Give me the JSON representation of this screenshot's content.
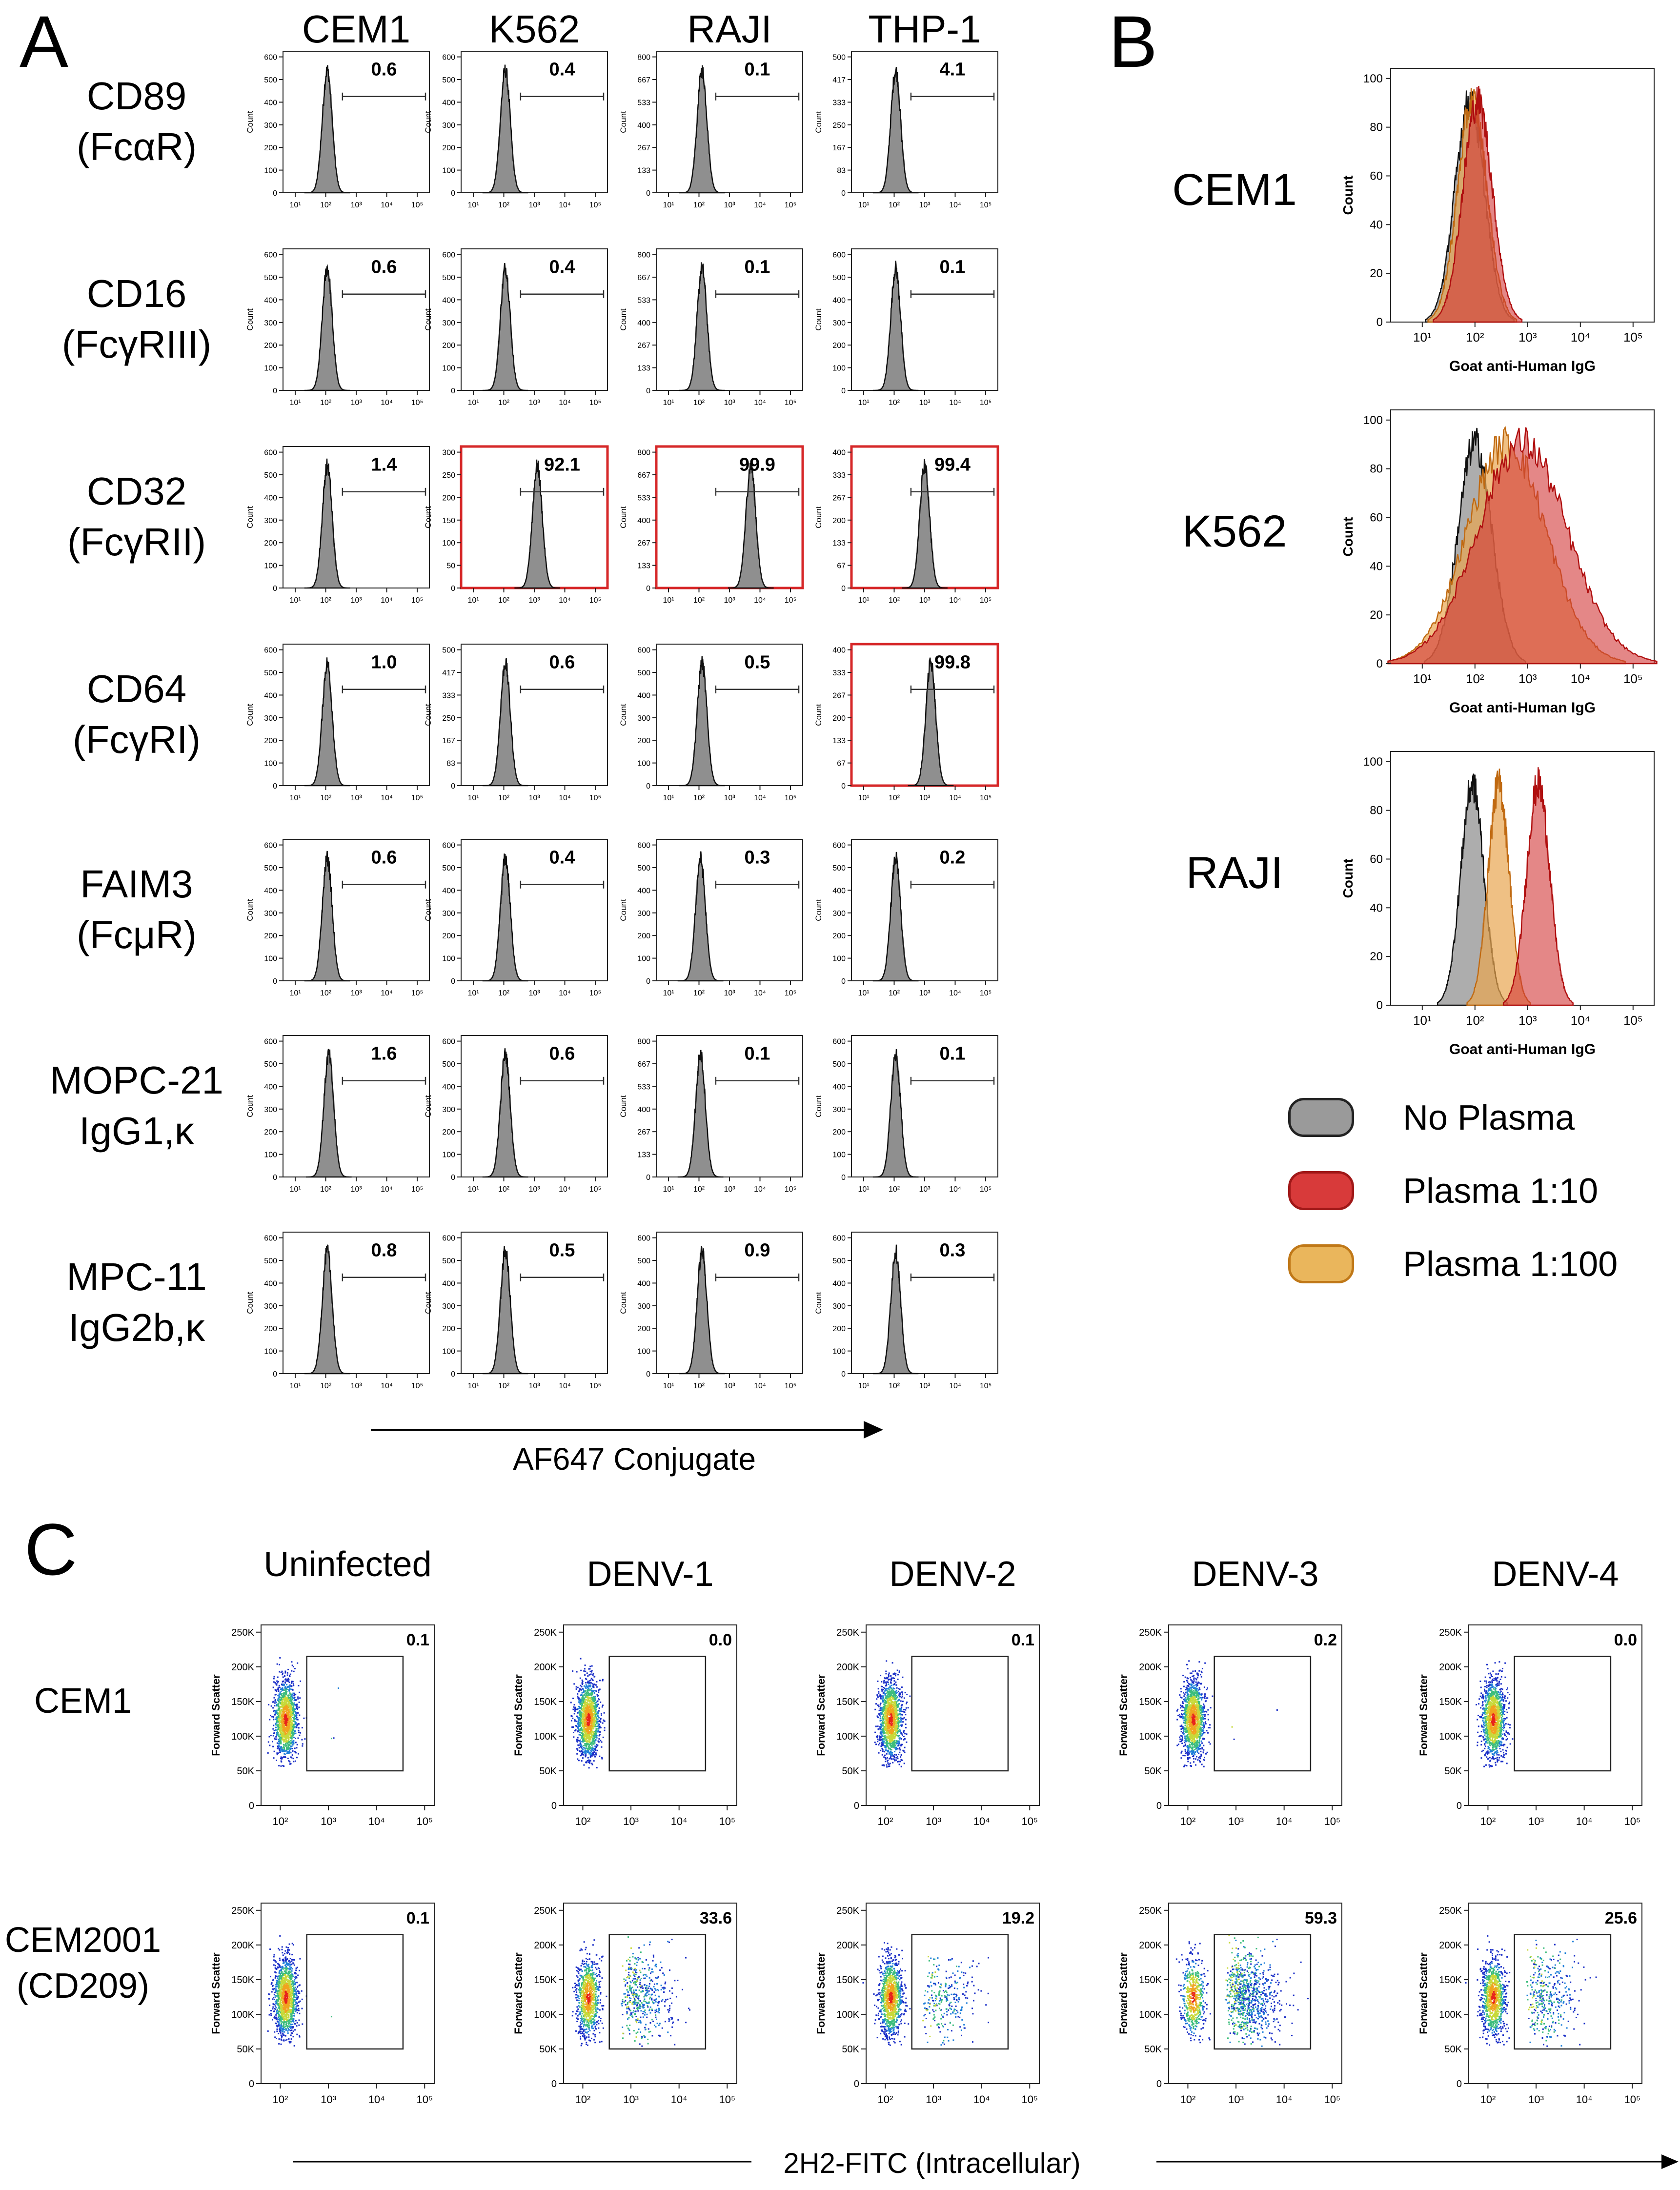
{
  "panels": {
    "a": "A",
    "b": "B",
    "c": "C"
  },
  "colors": {
    "hist_fill": "#8f8f8f",
    "highlight_frame": "#d62728",
    "no_plasma": "#9a9a9a",
    "plasma_1_10": "#cc2c2c",
    "plasma_1_100": "#e6a24a"
  },
  "chart_data": [
    {
      "id": "panelA",
      "type": "histogram-grid",
      "title": "",
      "xlabel": "AF647 Conjugate",
      "x_scale": "log",
      "x_tick_labels": [
        "10¹",
        "10²",
        "10³",
        "10⁴",
        "10⁵"
      ],
      "ylabel": "Count",
      "columns": [
        "CEM1",
        "K562",
        "RAJI",
        "THP-1"
      ],
      "rows": [
        {
          "label": "CD89\n(FcαR)",
          "values": [
            "0.6",
            "0.4",
            "0.1",
            "4.1"
          ],
          "peaks": [
            2.05,
            2.05,
            2.1,
            2.05
          ],
          "ymax": [
            600,
            600,
            800,
            500
          ],
          "highlight": [
            false,
            false,
            false,
            false
          ]
        },
        {
          "label": "CD16\n(FcγRIII)",
          "values": [
            "0.6",
            "0.4",
            "0.1",
            "0.1"
          ],
          "peaks": [
            2.05,
            2.05,
            2.1,
            2.05
          ],
          "ymax": [
            600,
            600,
            800,
            600
          ],
          "highlight": [
            false,
            false,
            false,
            false
          ]
        },
        {
          "label": "CD32\n(FcγRII)",
          "values": [
            "1.4",
            "92.1",
            "99.9",
            "99.4"
          ],
          "peaks": [
            2.05,
            3.1,
            3.7,
            3.0
          ],
          "ymax": [
            600,
            300,
            800,
            400
          ],
          "highlight": [
            false,
            true,
            true,
            true
          ]
        },
        {
          "label": "CD64\n(FcγRI)",
          "values": [
            "1.0",
            "0.6",
            "0.5",
            "99.8"
          ],
          "peaks": [
            2.05,
            2.05,
            2.1,
            3.2
          ],
          "ymax": [
            600,
            500,
            600,
            400
          ],
          "highlight": [
            false,
            false,
            false,
            true
          ]
        },
        {
          "label": "FAIM3\n(FcμR)",
          "values": [
            "0.6",
            "0.4",
            "0.3",
            "0.2"
          ],
          "peaks": [
            2.05,
            2.05,
            2.05,
            2.05
          ],
          "ymax": [
            600,
            600,
            600,
            600
          ],
          "highlight": [
            false,
            false,
            false,
            false
          ]
        },
        {
          "label": "MOPC-21\nIgG1,κ",
          "values": [
            "1.6",
            "0.6",
            "0.1",
            "0.1"
          ],
          "peaks": [
            2.1,
            2.05,
            2.05,
            2.05
          ],
          "ymax": [
            600,
            600,
            800,
            600
          ],
          "highlight": [
            false,
            false,
            false,
            false
          ]
        },
        {
          "label": "MPC-11\nIgG2b,κ",
          "values": [
            "0.8",
            "0.5",
            "0.9",
            "0.3"
          ],
          "peaks": [
            2.05,
            2.05,
            2.1,
            2.05
          ],
          "ymax": [
            600,
            600,
            600,
            600
          ],
          "highlight": [
            false,
            false,
            false,
            false
          ]
        }
      ]
    },
    {
      "id": "panelB",
      "type": "area",
      "xlabel": "Goat anti-Human IgG",
      "ylabel": "Count",
      "ylim": [
        0,
        100
      ],
      "y_ticks": [
        "0",
        "20",
        "40",
        "60",
        "80",
        "100"
      ],
      "x_tick_labels": [
        "10¹",
        "10²",
        "10³",
        "10⁴",
        "10⁵"
      ],
      "rows": [
        {
          "label": "CEM1",
          "series": [
            {
              "name": "No Plasma",
              "peak": 1.9,
              "width": 0.28
            },
            {
              "name": "Plasma 1:100",
              "peak": 1.95,
              "width": 0.28
            },
            {
              "name": "Plasma 1:10",
              "peak": 2.05,
              "width": 0.28
            }
          ]
        },
        {
          "label": "K562",
          "series": [
            {
              "name": "No Plasma",
              "peak": 2.0,
              "width": 0.32
            },
            {
              "name": "Plasma 1:100",
              "peak": 2.6,
              "width": 0.75
            },
            {
              "name": "Plasma 1:10",
              "peak": 2.9,
              "width": 0.85
            }
          ]
        },
        {
          "label": "RAJI",
          "series": [
            {
              "name": "No Plasma",
              "peak": 1.95,
              "width": 0.22
            },
            {
              "name": "Plasma 1:100",
              "peak": 2.45,
              "width": 0.2
            },
            {
              "name": "Plasma 1:10",
              "peak": 3.2,
              "width": 0.22
            }
          ]
        }
      ]
    },
    {
      "id": "panelC",
      "type": "scatter-grid",
      "xlabel": "2H2-FITC (Intracellular)",
      "ylabel": "Forward Scatter",
      "y_tick_labels": [
        "0",
        "50K",
        "100K",
        "150K",
        "200K",
        "250K"
      ],
      "x_tick_labels": [
        "10²",
        "10³",
        "10⁴",
        "10⁵"
      ],
      "columns": [
        "Uninfected",
        "DENV-1",
        "DENV-2",
        "DENV-3",
        "DENV-4"
      ],
      "rows": [
        {
          "label": "CEM1",
          "values": [
            "0.1",
            "0.0",
            "0.1",
            "0.2",
            "0.0"
          ]
        },
        {
          "label": "CEM2001\n(CD209)",
          "values": [
            "0.1",
            "33.6",
            "19.2",
            "59.3",
            "25.6"
          ]
        }
      ]
    }
  ],
  "legend": [
    {
      "label": "No Plasma",
      "color": "#9a9a9a",
      "stroke": "#222222"
    },
    {
      "label": "Plasma 1:10",
      "color": "#d83a3a",
      "stroke": "#a01818"
    },
    {
      "label": "Plasma 1:100",
      "color": "#eab65c",
      "stroke": "#c07818"
    }
  ]
}
